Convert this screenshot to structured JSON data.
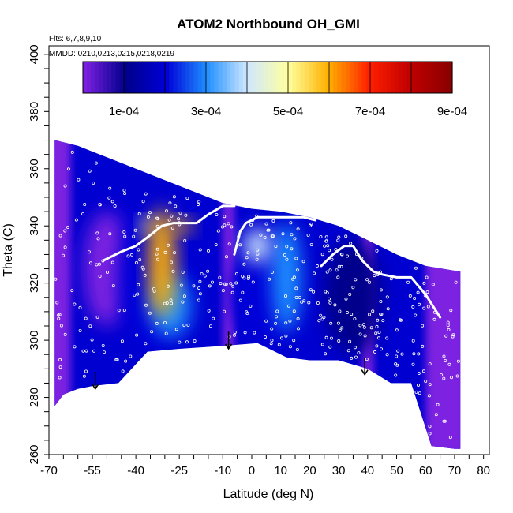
{
  "chart_data": {
    "type": "heatmap",
    "title": "ATOM2 Northbound OH_GMI",
    "note_flights": "Flts: 6,7,8,9,10",
    "note_dates": "MMDD: 0210,0213,0215,0218,0219",
    "xlabel": "Latitude (deg N)",
    "ylabel": "Theta (C)",
    "xlim": [
      -70,
      82
    ],
    "ylim": [
      260,
      403
    ],
    "x_ticks": [
      -70,
      -55,
      -40,
      -25,
      -10,
      0,
      10,
      20,
      30,
      40,
      50,
      60,
      70,
      80
    ],
    "y_ticks": [
      260,
      280,
      300,
      320,
      340,
      360,
      380,
      400
    ],
    "colorbar": {
      "range": [
        0,
        0.0009
      ],
      "tick_values": [
        0.0001,
        0.0003,
        0.0005,
        0.0007,
        0.0009
      ],
      "tick_labels": [
        "1e-04",
        "3e-04",
        "5e-04",
        "7e-04",
        "9e-04"
      ],
      "colors": [
        "#7b20e0",
        "#00008b",
        "#0000d8",
        "#1f8fff",
        "#cfe8ff",
        "#ffffa0",
        "#ffb000",
        "#ff2000",
        "#c00000",
        "#8b0000"
      ]
    },
    "domain_top": [
      [
        -68,
        370
      ],
      [
        -60,
        368
      ],
      [
        -50,
        364
      ],
      [
        -40,
        360
      ],
      [
        -30,
        356
      ],
      [
        -20,
        352
      ],
      [
        -10,
        348
      ],
      [
        0,
        346
      ],
      [
        10,
        345
      ],
      [
        20,
        343
      ],
      [
        30,
        340
      ],
      [
        40,
        335
      ],
      [
        50,
        330
      ],
      [
        60,
        326
      ],
      [
        72,
        324
      ]
    ],
    "domain_bottom": [
      [
        -68,
        277
      ],
      [
        -65,
        281
      ],
      [
        -60,
        283
      ],
      [
        -55,
        284
      ],
      [
        -46,
        285
      ],
      [
        -36,
        296
      ],
      [
        -25,
        297
      ],
      [
        -10,
        298
      ],
      [
        2,
        299
      ],
      [
        12,
        294
      ],
      [
        20,
        293
      ],
      [
        30,
        293
      ],
      [
        40,
        290
      ],
      [
        48,
        285
      ],
      [
        55,
        285
      ],
      [
        62,
        263
      ],
      [
        70,
        262
      ],
      [
        72,
        262
      ]
    ],
    "hotspots": [
      {
        "lat": -31,
        "theta": 327,
        "lat_width": 9,
        "theta_height": 38,
        "value": 0.00055
      },
      {
        "lat": -24,
        "theta": 340,
        "lat_width": 7,
        "theta_height": 5,
        "value": 0.00058
      },
      {
        "lat": -36,
        "theta": 340,
        "lat_width": 5,
        "theta_height": 5,
        "value": 0.00045
      },
      {
        "lat": -28,
        "theta": 312,
        "lat_width": 14,
        "theta_height": 22,
        "value": 0.0003
      },
      {
        "lat": 2,
        "theta": 333,
        "lat_width": 9,
        "theta_height": 12,
        "value": 0.0004
      },
      {
        "lat": 12,
        "theta": 322,
        "lat_width": 10,
        "theta_height": 38,
        "value": 0.00033
      },
      {
        "lat": 4,
        "theta": 316,
        "lat_width": 22,
        "theta_height": 30,
        "value": 0.00022
      },
      {
        "lat": -35,
        "theta": 322,
        "lat_width": 22,
        "theta_height": 50,
        "value": 0.00025
      },
      {
        "lat": -50,
        "theta": 325,
        "lat_width": 16,
        "theta_height": 40,
        "value": 8e-05
      },
      {
        "lat": 35,
        "theta": 315,
        "lat_width": 20,
        "theta_height": 40,
        "value": 9e-05
      }
    ],
    "low_columns": [
      {
        "lat": -67,
        "lat_width": 9,
        "value": 1e-05
      },
      {
        "lat": 67,
        "lat_width": 14,
        "value": 1e-05
      },
      {
        "lat": -8,
        "lat_width": 4,
        "value": 3e-05
      },
      {
        "lat": 40,
        "lat_width": 4,
        "value": 5e-05
      }
    ],
    "arrows": [
      {
        "lat": -54,
        "theta_top": 289,
        "theta_bottom": 283
      },
      {
        "lat": -8,
        "theta_top": 303,
        "theta_bottom": 297
      },
      {
        "lat": 39,
        "theta_top": 294,
        "theta_bottom": 288
      }
    ],
    "flight_tracks": [
      [
        [
          -51,
          328
        ],
        [
          -45,
          331
        ],
        [
          -40,
          333
        ],
        [
          -36,
          336
        ],
        [
          -31,
          340
        ],
        [
          -27,
          341
        ],
        [
          -22,
          341
        ],
        [
          -19,
          341
        ],
        [
          -15,
          344
        ],
        [
          -10,
          347
        ],
        [
          -6,
          347
        ]
      ],
      [
        [
          -6,
          330
        ],
        [
          -4,
          338
        ],
        [
          -2,
          341
        ],
        [
          2,
          343
        ],
        [
          6,
          343
        ],
        [
          10,
          343
        ],
        [
          14,
          343
        ],
        [
          18,
          343
        ],
        [
          22,
          342
        ]
      ],
      [
        [
          24,
          326
        ],
        [
          28,
          330
        ],
        [
          32,
          333
        ],
        [
          35,
          333
        ],
        [
          38,
          328
        ],
        [
          42,
          324
        ],
        [
          45,
          323
        ],
        [
          50,
          322
        ],
        [
          55,
          322
        ],
        [
          60,
          316
        ],
        [
          65,
          308
        ]
      ]
    ]
  }
}
